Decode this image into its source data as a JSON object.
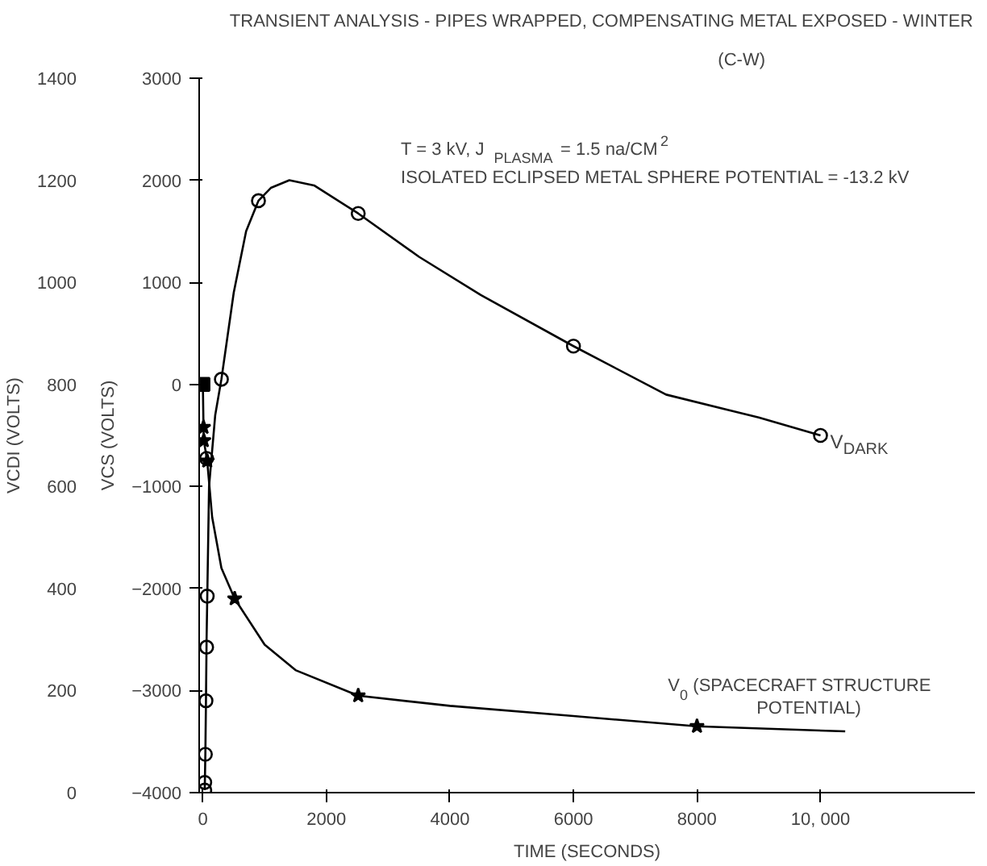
{
  "chart_data": {
    "type": "line",
    "title": "TRANSIENT ANALYSIS - PIPES WRAPPED, COMPENSATING METAL EXPOSED - WINTER",
    "subtitle": "(C-W)",
    "xlabel": "TIME (SECONDS)",
    "ylabel": "VCS (VOLTS)",
    "y2label": "VCDI (VOLTS)",
    "annotations": [
      "T = 3 kV, J$_{PLASMA}$ = 1.5 na/CM$^{2}$",
      "ISOLATED ECLIPSED METAL SPHERE POTENTIAL = -13.2 kV"
    ],
    "xlim": [
      -60,
      12500
    ],
    "xticks": [
      0,
      2000,
      4000,
      6000,
      8000,
      {
        "value": 10000,
        "label": "10, 000"
      }
    ],
    "ylim": [
      -4000,
      3000
    ],
    "yticks": [
      -4000,
      -3000,
      -2000,
      -1000,
      0,
      1000,
      2000,
      3000
    ],
    "y2lim": [
      0,
      1400
    ],
    "y2ticks": [
      0,
      200,
      400,
      600,
      800,
      1000,
      1200,
      1400
    ],
    "grid": false,
    "line_style": "solid",
    "series": [
      {
        "name": "V$_{DARK}$",
        "axis": "y2",
        "color": "#000000",
        "marker": "none",
        "x": [
          30,
          40,
          50,
          60,
          100,
          200,
          300,
          500,
          700,
          900,
          1100,
          1400,
          1800,
          2515,
          3500,
          4500,
          6000,
          7500,
          9000,
          10000
        ],
        "values": [
          5,
          75,
          180,
          300,
          600,
          740,
          810,
          980,
          1100,
          1160,
          1185,
          1200,
          1190,
          1135,
          1050,
          975,
          875,
          780,
          735,
          700
        ]
      },
      {
        "type": "scatter",
        "axis": "y2",
        "color": "#000000",
        "marker": "circle",
        "x": [
          30,
          30,
          40,
          50,
          60,
          70,
          60,
          300,
          900,
          2515,
          6000,
          10000
        ],
        "values": [
          5,
          20,
          75,
          180,
          285,
          385,
          655,
          810,
          1160,
          1135,
          875,
          700
        ]
      },
      {
        "name": "V$_{0}$ (SPACECRAFT STRUCTURE POTENTIAL)",
        "color": "#000000",
        "marker": "none",
        "x": [
          0,
          10,
          15,
          70,
          150,
          300,
          515,
          1000,
          1500,
          2515,
          4000,
          6000,
          8000,
          10400
        ],
        "values": [
          0,
          -420,
          -550,
          -750,
          -1300,
          -1800,
          -2100,
          -2550,
          -2800,
          -3050,
          -3150,
          -3250,
          -3350,
          -3400
        ]
      },
      {
        "type": "scatter",
        "color": "#000000",
        "marker": "star",
        "x": [
          10,
          15,
          70,
          515,
          2515,
          8000
        ],
        "values": [
          -420,
          -550,
          -750,
          -2100,
          -3050,
          -3350
        ]
      },
      {
        "type": "scatter",
        "color": "#000000",
        "marker": "square",
        "x": [
          0
        ],
        "values": [
          0
        ]
      }
    ]
  }
}
